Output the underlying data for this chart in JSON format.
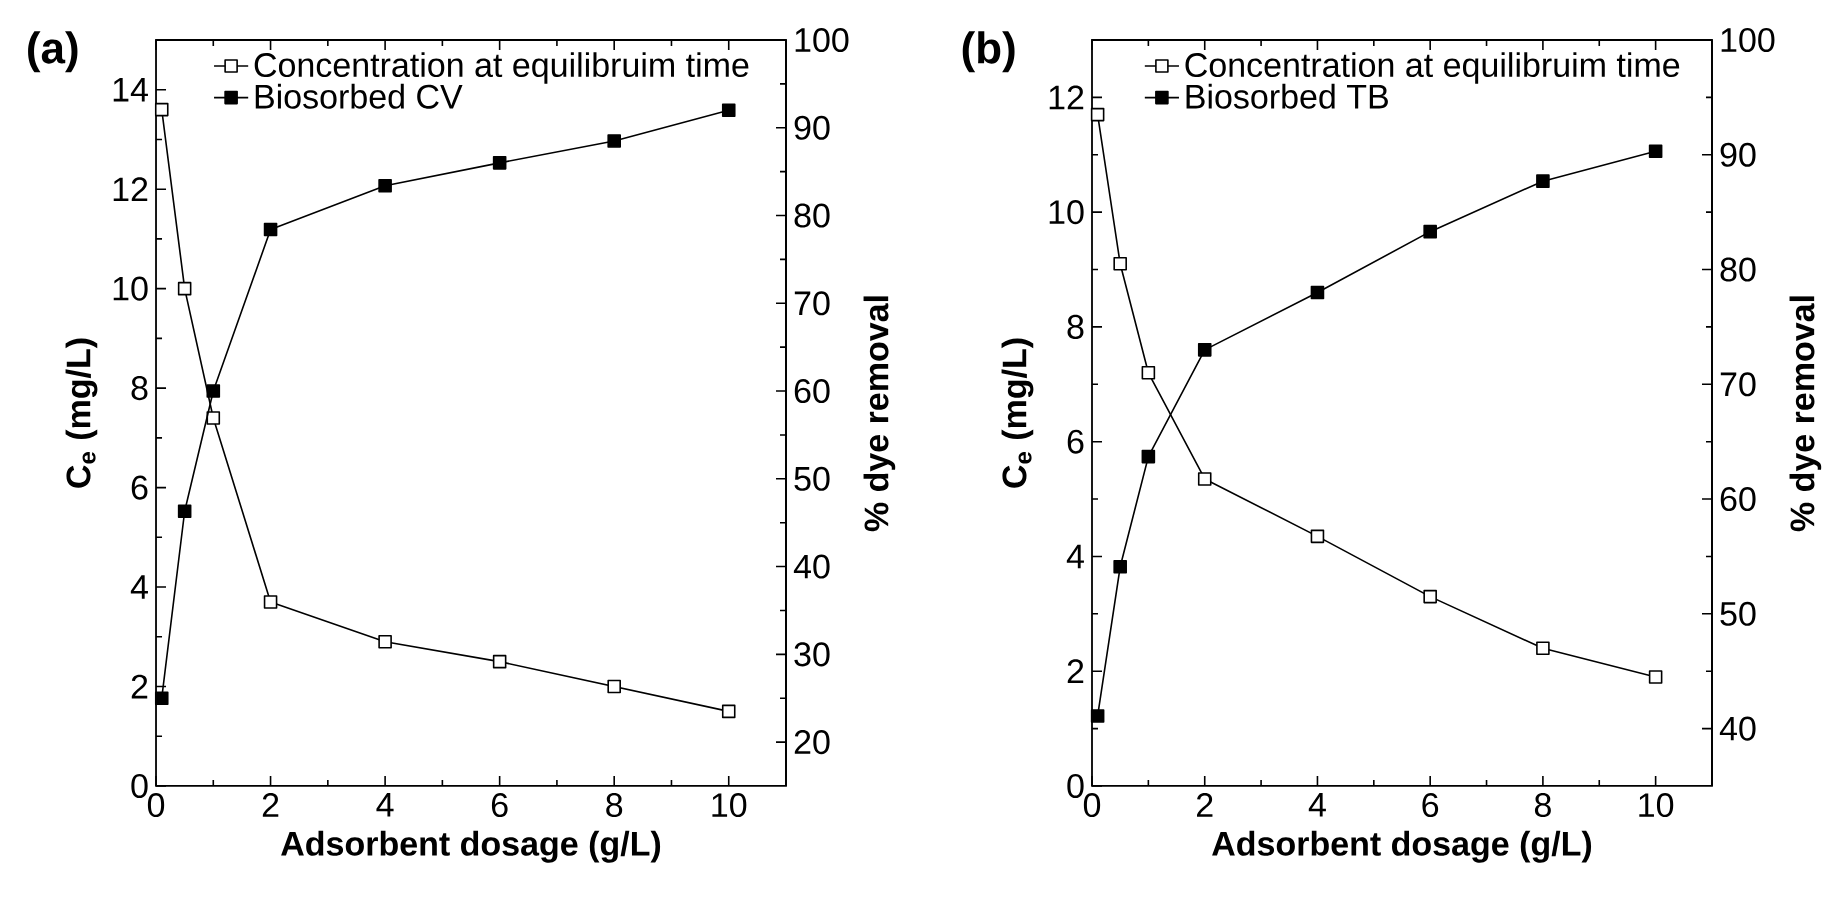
{
  "chart_data": [
    {
      "type": "line",
      "title": "(a)",
      "xlabel": "Adsorbent dosage (g/L)",
      "ylabel": "C$_{e}$ (mg/L)",
      "y2label": "% dye removal",
      "x": [
        0.1,
        0.5,
        1,
        2,
        4,
        6,
        8,
        10
      ],
      "xlim": [
        0,
        11
      ],
      "xticks": [
        0,
        2,
        4,
        6,
        8,
        10
      ],
      "ylim": [
        0,
        15
      ],
      "yticks": [
        0,
        2,
        4,
        6,
        8,
        10,
        12,
        14
      ],
      "y2lim": [
        15,
        100
      ],
      "y2ticks": [
        20,
        30,
        40,
        50,
        60,
        70,
        80,
        90,
        100
      ],
      "legend": "top",
      "marker": "square",
      "series": [
        {
          "name": "Concentration at equilibruim time",
          "color": "#000000",
          "values": [
            13.6,
            10.0,
            7.4,
            3.7,
            2.9,
            2.5,
            2.0,
            1.5
          ]
        },
        {
          "name": "Biosorbed CV",
          "color": "#000000",
          "axis": "y2",
          "values": [
            25,
            46.3,
            60,
            78.4,
            83.4,
            86,
            88.5,
            92
          ]
        }
      ]
    },
    {
      "type": "line",
      "title": "(b)",
      "xlabel": "Adsorbent dosage (g/L)",
      "ylabel": "C$_{e}$ (mg/L)",
      "y2label": "% dye removal",
      "x": [
        0.1,
        0.5,
        1,
        2,
        4,
        6,
        8,
        10
      ],
      "xlim": [
        0,
        11
      ],
      "xticks": [
        0,
        2,
        4,
        6,
        8,
        10
      ],
      "ylim": [
        0,
        13
      ],
      "yticks": [
        0,
        2,
        4,
        6,
        8,
        10,
        12
      ],
      "y2lim": [
        35,
        100
      ],
      "y2ticks": [
        40,
        50,
        60,
        70,
        80,
        90,
        100
      ],
      "legend": "top",
      "marker": "square",
      "series": [
        {
          "name": "Concentration at equilibruim time",
          "color": "#000000",
          "values": [
            11.7,
            9.1,
            7.2,
            5.35,
            4.35,
            3.3,
            2.4,
            1.9
          ]
        },
        {
          "name": "Biosorbed TB",
          "color": "#000000",
          "axis": "y2",
          "values": [
            41.1,
            54.1,
            63.7,
            73.0,
            78.0,
            83.3,
            87.7,
            90.3
          ]
        }
      ]
    }
  ]
}
